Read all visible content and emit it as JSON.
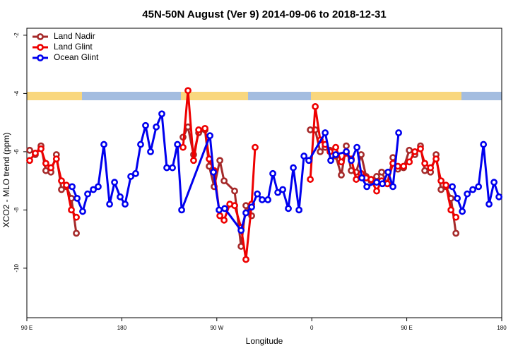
{
  "chart_data": {
    "type": "line",
    "title": "45N-50N August (Ver 9)   2014-09-06 to 2018-12-31",
    "x_label": "Longitude",
    "y_label": "XCO2 - MLO trend (ppm)",
    "xlim": [
      90,
      540
    ],
    "xticks": [
      {
        "value": 90,
        "label": "90 E"
      },
      {
        "value": 180,
        "label": "180"
      },
      {
        "value": 270,
        "label": "90 W"
      },
      {
        "value": 360,
        "label": "0"
      },
      {
        "value": 450,
        "label": "90 E"
      },
      {
        "value": 540,
        "label": "180"
      }
    ],
    "ylim": [
      -11.7,
      -1.76
    ],
    "yticks": [
      -10,
      -8,
      -6,
      -4,
      -2
    ],
    "legend": "topleft",
    "series": [
      {
        "name": "Land Nadir",
        "color": "#a52a2a",
        "x": [
          92.7,
          98,
          103.4,
          108,
          112.8,
          118,
          122.8,
          127.5,
          132.2,
          136.9,
          null,
          238,
          242.7,
          248,
          252.8,
          258.8,
          262.8,
          267.5,
          272.9,
          276.9,
          286.9,
          293,
          297.6,
          303,
          null,
          358.6,
          363.3,
          368,
          372.7,
          377.3,
          382.7,
          388,
          392.7,
          397.4,
          402.1,
          406.8,
          411.5,
          416.2,
          421.5,
          426.2,
          431.6,
          436.9,
          441.6,
          447,
          452.4,
          457.7,
          463,
          467.1,
          472.5,
          477.8,
          482.5,
          487.2,
          491.9,
          496.6
        ],
        "values": [
          -5.95,
          -6.1,
          -5.8,
          -6.65,
          -6.7,
          -6.1,
          -7.3,
          -7.2,
          -7.6,
          -8.8,
          null,
          -5.5,
          -5.15,
          -6.1,
          -5.35,
          -5.25,
          -6.5,
          -7.2,
          -6.3,
          -7.0,
          -7.35,
          -9.25,
          -7.85,
          -8.2,
          null,
          -5.25,
          -5.25,
          -6.0,
          -5.85,
          -5.95,
          -6.15,
          -6.8,
          -5.8,
          -6.65,
          -6.7,
          -6.1,
          -6.85,
          -7.0,
          -6.85,
          -6.7,
          -7.1,
          -6.2,
          -6.6,
          -6.55,
          -5.95,
          -6.1,
          -5.8,
          -6.65,
          -6.7,
          -6.1,
          -7.3,
          -7.2,
          -7.6,
          -8.8
        ]
      },
      {
        "name": "Land Glint",
        "color": "#ee0000",
        "x": [
          92.7,
          98,
          103.4,
          108,
          112.8,
          118,
          122.8,
          127.5,
          132.2,
          136.9,
          null,
          238,
          242.7,
          248,
          252.8,
          258.8,
          262.8,
          267.5,
          272.9,
          276.9,
          282.3,
          286.9,
          293,
          297.6,
          303,
          306.3,
          null,
          358.6,
          363.3,
          368,
          372.7,
          377.3,
          382.7,
          388,
          392.7,
          397.4,
          402.1,
          406.8,
          411.5,
          416.2,
          421.5,
          426.2,
          431.6,
          436.9,
          441.6,
          447,
          452.4,
          457.7,
          463,
          467.1,
          472.5,
          477.8,
          482.5,
          487.2,
          491.9,
          496.6
        ],
        "values": [
          -6.3,
          -6.05,
          -5.9,
          -6.4,
          -6.55,
          -6.25,
          -7.0,
          -7.15,
          -8.0,
          -8.25,
          null,
          -5.85,
          -3.9,
          -6.3,
          -5.25,
          -5.2,
          -6.25,
          -6.65,
          -8.2,
          -8.35,
          -7.8,
          -7.85,
          -8.6,
          -9.7,
          -7.8,
          -5.85,
          null,
          -6.95,
          -4.45,
          -5.6,
          -5.75,
          -6.0,
          -5.85,
          -6.35,
          -6.05,
          -6.25,
          -6.95,
          -6.75,
          -6.9,
          -6.95,
          -7.35,
          -7.0,
          -7.1,
          -6.4,
          -6.5,
          -6.5,
          -6.35,
          -6.0,
          -5.9,
          -6.4,
          -6.55,
          -6.25,
          -7.0,
          -7.15,
          -8.0,
          -8.25
        ]
      },
      {
        "name": "Ocean Glint",
        "color": "#0000ee",
        "x": [
          132.9,
          137.6,
          142.9,
          147.6,
          153,
          157.6,
          163,
          168.4,
          173.1,
          178.4,
          183.1,
          188.5,
          193.1,
          197.8,
          202.5,
          207.2,
          212.6,
          217.9,
          222.6,
          228,
          232.7,
          236.7,
          263.5,
          266.8,
          272.2,
          277.5,
          293,
          297.6,
          303,
          308.4,
          313,
          318.4,
          323.1,
          327.8,
          332.5,
          337.8,
          342.5,
          347.9,
          352.6,
          357.2,
          372.7,
          378,
          382.7,
          392.7,
          397.4,
          402.8,
          407.5,
          412.2,
          421.5,
          426.9,
          432.3,
          436.9,
          442.3,
          null,
          493.2,
          497.9,
          502.6,
          507.3,
          512.6,
          518,
          522.7,
          528,
          532.7,
          537.4
        ],
        "values": [
          -7.2,
          -7.6,
          -8.05,
          -7.45,
          -7.3,
          -7.2,
          -5.75,
          -7.8,
          -7.05,
          -7.55,
          -7.8,
          -6.85,
          -6.75,
          -5.75,
          -5.1,
          -6.0,
          -5.15,
          -4.7,
          -6.55,
          -6.55,
          -5.75,
          -8.0,
          -5.45,
          -6.7,
          -8.0,
          -7.95,
          -8.7,
          -8.1,
          -7.9,
          -7.45,
          -7.65,
          -7.65,
          -6.75,
          -7.4,
          -7.3,
          -7.95,
          -6.55,
          -8.0,
          -6.15,
          -6.3,
          -5.35,
          -6.3,
          -6.1,
          -6.0,
          -6.3,
          -5.85,
          -6.9,
          -7.2,
          -7.05,
          -7.1,
          -6.7,
          -7.2,
          -5.35,
          null,
          -7.2,
          -7.6,
          -8.05,
          -7.45,
          -7.3,
          -7.2,
          -5.75,
          -7.8,
          -7.05,
          -7.55
        ]
      }
    ]
  }
}
